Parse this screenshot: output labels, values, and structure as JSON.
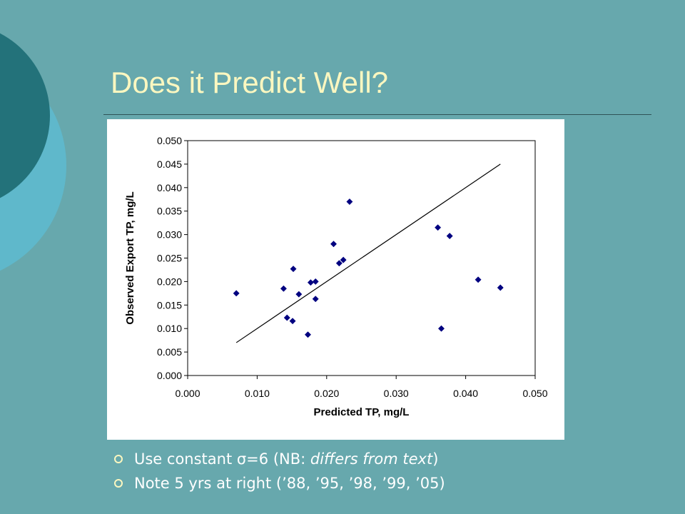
{
  "slide": {
    "title": "Does it Predict Well?",
    "bullets": [
      {
        "parts": [
          {
            "text": "Use constant σ=6 (NB: ",
            "italic": false
          },
          {
            "text": "differs from text",
            "italic": true
          },
          {
            "text": ")",
            "italic": false
          }
        ]
      },
      {
        "parts": [
          {
            "text": "Note 5 yrs at right (’88, ’95, ’98, ’99, ’05)",
            "italic": false
          }
        ]
      }
    ],
    "colors": {
      "background": "#67a8ad",
      "title": "#fbf7c0",
      "circle_dark": "#23727a",
      "circle_light": "#5fb8cb",
      "marker": "#000080"
    }
  },
  "chart_data": {
    "type": "scatter",
    "xlabel": "Predicted TP, mg/L",
    "ylabel": "Observed Export TP, mg/L",
    "xlim": [
      0.0,
      0.05
    ],
    "ylim": [
      0.0,
      0.05
    ],
    "x_ticks": [
      0.0,
      0.01,
      0.02,
      0.03,
      0.04,
      0.05
    ],
    "x_tick_labels": [
      "0.000",
      "0.010",
      "0.020",
      "0.030",
      "0.040",
      "0.050"
    ],
    "y_ticks": [
      0.0,
      0.005,
      0.01,
      0.015,
      0.02,
      0.025,
      0.03,
      0.035,
      0.04,
      0.045,
      0.05
    ],
    "y_tick_labels": [
      "0.000",
      "0.005",
      "0.010",
      "0.015",
      "0.020",
      "0.025",
      "0.030",
      "0.035",
      "0.040",
      "0.045",
      "0.050"
    ],
    "grid": false,
    "legend": "none",
    "marker": "diamond",
    "points": [
      {
        "x": 0.007,
        "y": 0.0175
      },
      {
        "x": 0.0138,
        "y": 0.0185
      },
      {
        "x": 0.0143,
        "y": 0.0123
      },
      {
        "x": 0.0151,
        "y": 0.0116
      },
      {
        "x": 0.0152,
        "y": 0.0227
      },
      {
        "x": 0.016,
        "y": 0.0173
      },
      {
        "x": 0.0173,
        "y": 0.0087
      },
      {
        "x": 0.0177,
        "y": 0.0198
      },
      {
        "x": 0.0184,
        "y": 0.02
      },
      {
        "x": 0.0184,
        "y": 0.0163
      },
      {
        "x": 0.021,
        "y": 0.028
      },
      {
        "x": 0.0218,
        "y": 0.0239
      },
      {
        "x": 0.0224,
        "y": 0.0246
      },
      {
        "x": 0.0233,
        "y": 0.037
      },
      {
        "x": 0.036,
        "y": 0.0315
      },
      {
        "x": 0.0365,
        "y": 0.01
      },
      {
        "x": 0.0377,
        "y": 0.0297
      },
      {
        "x": 0.0418,
        "y": 0.0204
      },
      {
        "x": 0.045,
        "y": 0.0187
      }
    ],
    "reference_line": {
      "x": [
        0.007,
        0.045
      ],
      "y": [
        0.007,
        0.045
      ]
    }
  }
}
